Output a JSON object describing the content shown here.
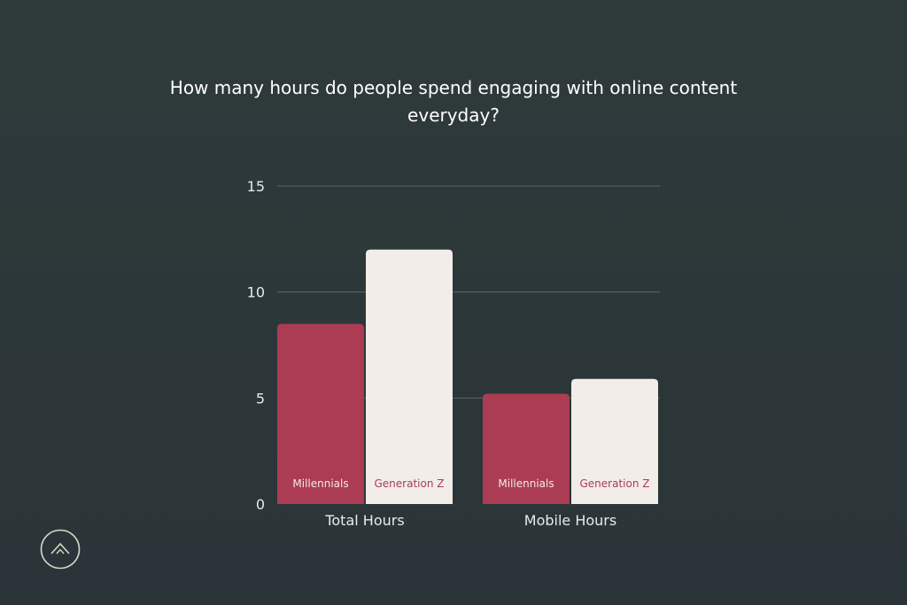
{
  "colors": {
    "millennials": "#ac3c53",
    "generation_z": "#f2ede8",
    "grid": "#5d6668",
    "axis_text": "#e8eaea",
    "inner_label_on_dark": "#f2ede8",
    "inner_label_on_light": "#ac3c53"
  },
  "chart_data": {
    "type": "bar",
    "title": "How many hours do people spend engaging with online content everyday?",
    "categories": [
      "Total Hours",
      "Mobile Hours"
    ],
    "series": [
      {
        "name": "Millennials",
        "values": [
          8.5,
          5.2
        ]
      },
      {
        "name": "Generation Z",
        "values": [
          12,
          5.9
        ]
      }
    ],
    "ylim": [
      0,
      15
    ],
    "yticks": [
      "0",
      "5",
      "10",
      "15"
    ],
    "grid": true,
    "legend": "inside-bars"
  },
  "logo": {
    "icon": "chevron-up-icon"
  }
}
